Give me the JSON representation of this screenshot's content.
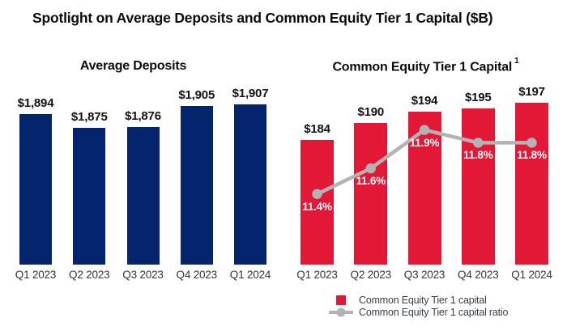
{
  "title": "Spotlight on Average Deposits and Common Equity Tier 1 Capital ($B)",
  "colors": {
    "background": "#ffffff",
    "title_text": "#0b0c0f",
    "value_label_text": "#121319",
    "axis_label_text": "#30353e",
    "ratio_label_text": "#ffffff",
    "legend_text": "#3a4048",
    "navy": "#05246e",
    "red": "#e31837",
    "gray": "#b3b3b3"
  },
  "chart_data": [
    {
      "type": "bar",
      "title": "Average Deposits",
      "categories": [
        "Q1 2023",
        "Q2 2023",
        "Q3 2023",
        "Q4 2023",
        "Q1 2024"
      ],
      "values": [
        1894,
        1875,
        1876,
        1905,
        1907
      ],
      "value_labels": [
        "$1,894",
        "$1,875",
        "$1,876",
        "$1,905",
        "$1,907"
      ],
      "ylim": [
        1685,
        1925
      ],
      "grid": false,
      "legend_position": "none",
      "bar_color": "#05246e"
    },
    {
      "type": "bar+line",
      "title": "Common Equity Tier 1 Capital",
      "title_superscript": "1",
      "categories": [
        "Q1 2023",
        "Q2 2023",
        "Q3 2023",
        "Q4 2023",
        "Q1 2024"
      ],
      "series": [
        {
          "name": "Common Equity Tier 1 capital",
          "type": "bar",
          "values": [
            184,
            190,
            194,
            195,
            197
          ],
          "value_labels": [
            "$184",
            "$190",
            "$194",
            "$195",
            "$197"
          ],
          "color": "#e31837",
          "ylim": [
            140,
            201
          ]
        },
        {
          "name": "Common Equity Tier 1 capital ratio",
          "type": "line",
          "values": [
            11.4,
            11.6,
            11.9,
            11.8,
            11.8
          ],
          "value_labels": [
            "11.4%",
            "11.6%",
            "11.9%",
            "11.8%",
            "11.8%"
          ],
          "color": "#b3b3b3",
          "ylim": [
            10.85,
            12.2
          ]
        }
      ],
      "grid": false,
      "legend_position": "bottom-right"
    }
  ]
}
